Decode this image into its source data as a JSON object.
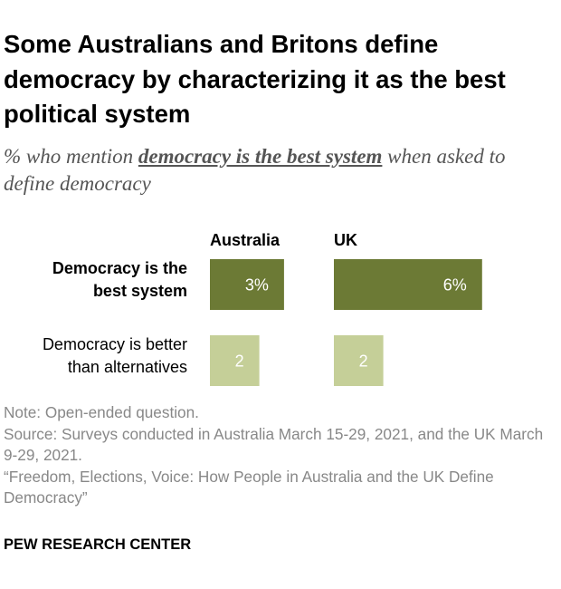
{
  "title": "Some Australians and Britons define democracy by characterizing it as the best political system",
  "subtitle": {
    "before": "% who mention ",
    "emphasis": "democracy is the best system",
    "after": " when asked to define democracy"
  },
  "chart_data": {
    "type": "bar",
    "orientation": "horizontal",
    "columns": [
      "Australia",
      "UK"
    ],
    "rows": [
      {
        "label_lines": [
          "Democracy is the",
          "best system"
        ],
        "bold": true,
        "values": [
          3,
          6
        ],
        "value_labels": [
          "3%",
          "6%"
        ],
        "color": "#6c7a35",
        "text_color": "#ffffff"
      },
      {
        "label_lines": [
          "Democracy is better",
          "than alternatives"
        ],
        "bold": false,
        "values": [
          2,
          2
        ],
        "value_labels": [
          "2",
          "2"
        ],
        "color": "#c5cf98",
        "text_color": "#ffffff"
      }
    ],
    "xlim": [
      0,
      6
    ],
    "grid": false,
    "legend": "none"
  },
  "notes": {
    "note": "Note: Open-ended question.",
    "source": "Source: Surveys conducted in Australia March 15-29, 2021, and the UK March 9-29, 2021.",
    "report": "“Freedom, Elections, Voice: How People in Australia and the UK Define Democracy”"
  },
  "brand": "PEW RESEARCH CENTER"
}
